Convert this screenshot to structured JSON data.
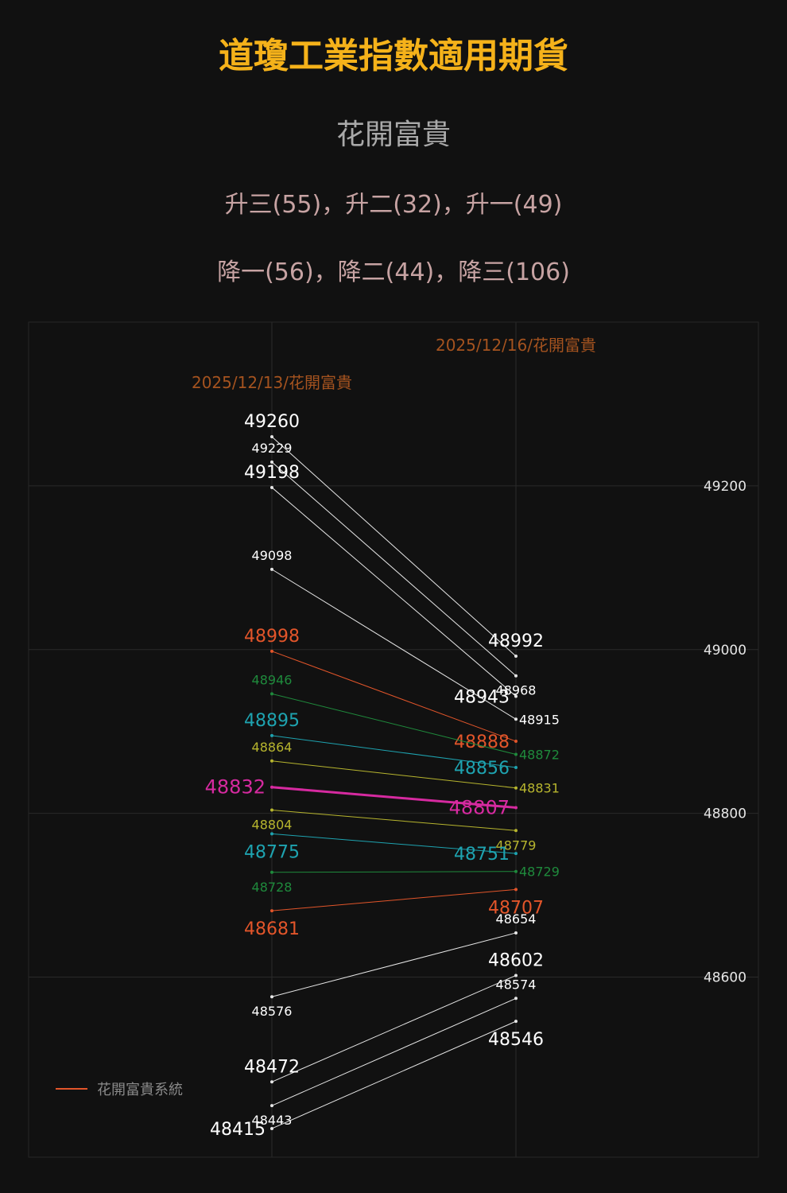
{
  "header": {
    "title": "道瓊工業指數適用期貨",
    "subtitle": "花開富貴",
    "up_stats": "升三(55)，升二(32)，升一(49)",
    "down_stats": "降一(56)，降二(44)，降三(106)"
  },
  "chart_data": {
    "type": "line",
    "categories": [
      "2025/12/13/花開富貴",
      "2025/12/16/花開富貴"
    ],
    "yticks": [
      48600,
      48800,
      49000,
      49200
    ],
    "ylim": [
      48380,
      49400
    ],
    "grid": true,
    "legend": {
      "label": "花開富貴系統",
      "color": "#e2552a",
      "position": "bottom-left"
    },
    "series": [
      {
        "values": [
          49260,
          48992
        ],
        "color": "#e6e6e6"
      },
      {
        "values": [
          49229,
          48968
        ],
        "color": "#e6e6e6"
      },
      {
        "values": [
          49198,
          48943
        ],
        "color": "#e6e6e6"
      },
      {
        "values": [
          49098,
          48915
        ],
        "color": "#e6e6e6"
      },
      {
        "values": [
          48998,
          48888
        ],
        "color": "#e2552a"
      },
      {
        "values": [
          48946,
          48872
        ],
        "color": "#1f8a3c"
      },
      {
        "values": [
          48895,
          48856
        ],
        "color": "#1ea3b0"
      },
      {
        "values": [
          48864,
          48831
        ],
        "color": "#b7b52e"
      },
      {
        "values": [
          48832,
          48807
        ],
        "color": "#d62aa0"
      },
      {
        "values": [
          48804,
          48779
        ],
        "color": "#b7b52e"
      },
      {
        "values": [
          48775,
          48751
        ],
        "color": "#1ea3b0"
      },
      {
        "values": [
          48728,
          48729
        ],
        "color": "#1f8a3c"
      },
      {
        "values": [
          48681,
          48707
        ],
        "color": "#e2552a"
      },
      {
        "values": [
          48576,
          48654
        ],
        "color": "#e6e6e6"
      },
      {
        "values": [
          48472,
          48602
        ],
        "color": "#e6e6e6"
      },
      {
        "values": [
          48443,
          48574
        ],
        "color": "#e6e6e6"
      },
      {
        "values": [
          48415,
          48546
        ],
        "color": "#e6e6e6"
      }
    ]
  }
}
